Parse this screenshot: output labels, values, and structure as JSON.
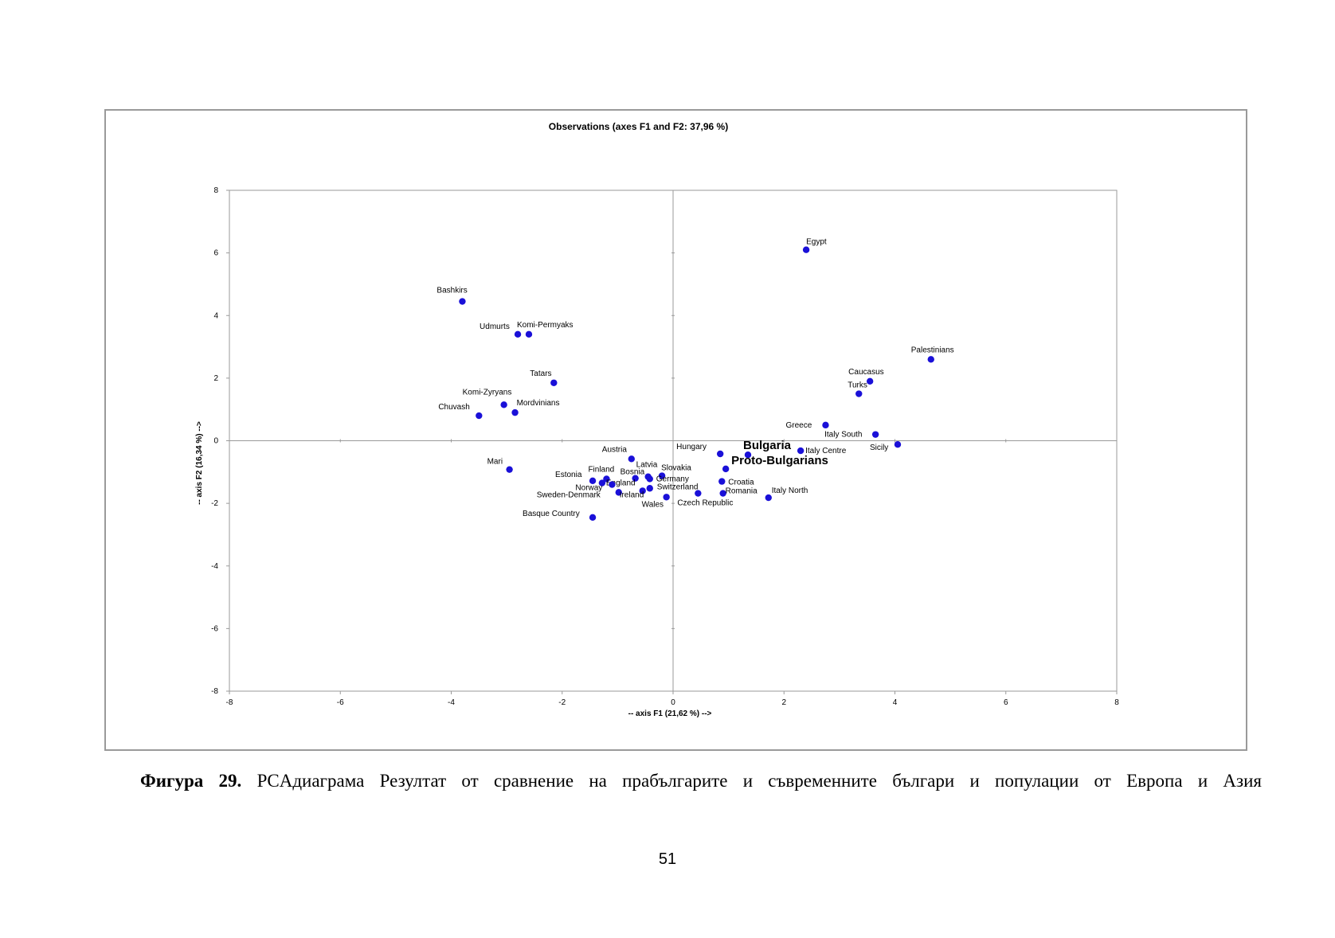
{
  "chart_data": {
    "type": "scatter",
    "title": "Observations (axes F1 and F2: 37,96 %)",
    "xlabel": "-- axis F1 (21,62 %) -->",
    "ylabel": "-- axis F2 (16,34 %) -->",
    "xlim": [
      -8,
      8
    ],
    "ylim": [
      -8,
      8
    ],
    "xticks": [
      "-8",
      "-6",
      "-4",
      "-2",
      "0",
      "2",
      "4",
      "6",
      "8"
    ],
    "yticks": [
      "-8",
      "-6",
      "-4",
      "-2",
      "0",
      "2",
      "4",
      "6",
      "8"
    ],
    "grid": false,
    "point_color": "#1a10d8",
    "points": [
      {
        "label": "Egypt",
        "x": 2.4,
        "y": 6.1
      },
      {
        "label": "Bashkirs",
        "x": -3.8,
        "y": 4.45
      },
      {
        "label": "Udmurts",
        "x": -2.8,
        "y": 3.4
      },
      {
        "label": "Komi-Permyaks",
        "x": -2.6,
        "y": 3.4
      },
      {
        "label": "Palestinians",
        "x": 4.65,
        "y": 2.6
      },
      {
        "label": "Tatars",
        "x": -2.15,
        "y": 1.85
      },
      {
        "label": "Caucasus",
        "x": 3.55,
        "y": 1.9
      },
      {
        "label": "Turks",
        "x": 3.35,
        "y": 1.5
      },
      {
        "label": "Komi-Zyryans",
        "x": -3.05,
        "y": 1.15
      },
      {
        "label": "Mordvinians",
        "x": -2.85,
        "y": 0.9
      },
      {
        "label": "Chuvash",
        "x": -3.5,
        "y": 0.8
      },
      {
        "label": "Greece",
        "x": 2.75,
        "y": 0.5
      },
      {
        "label": "Italy South",
        "x": 3.65,
        "y": 0.2
      },
      {
        "label": "Sicily",
        "x": 4.05,
        "y": -0.12
      },
      {
        "label": "Bulgaria",
        "x": 1.35,
        "y": -0.45
      },
      {
        "label": "Italy Centre",
        "x": 2.3,
        "y": -0.32
      },
      {
        "label": "Hungary",
        "x": 0.85,
        "y": -0.42
      },
      {
        "label": "Proto-Bulgarians",
        "x": 0.95,
        "y": -0.9
      },
      {
        "label": "Austria",
        "x": -0.75,
        "y": -0.58
      },
      {
        "label": "Mari",
        "x": -2.95,
        "y": -0.92
      },
      {
        "label": "Latvia",
        "x": -0.45,
        "y": -1.15
      },
      {
        "label": "Slovakia",
        "x": -0.2,
        "y": -1.12
      },
      {
        "label": "Bosnia",
        "x": -0.68,
        "y": -1.2
      },
      {
        "label": "Germany",
        "x": -0.42,
        "y": -1.22
      },
      {
        "label": "Croatia",
        "x": 0.88,
        "y": -1.3
      },
      {
        "label": "Finland",
        "x": -1.2,
        "y": -1.22
      },
      {
        "label": "Estonia",
        "x": -1.45,
        "y": -1.28
      },
      {
        "label": "England",
        "x": -1.28,
        "y": -1.35
      },
      {
        "label": "Norway",
        "x": -1.1,
        "y": -1.4
      },
      {
        "label": "Switzerland",
        "x": -0.42,
        "y": -1.52
      },
      {
        "label": "Romania",
        "x": 0.9,
        "y": -1.68
      },
      {
        "label": "Czech Republic",
        "x": 0.45,
        "y": -1.68
      },
      {
        "label": "Italy North",
        "x": 1.72,
        "y": -1.82
      },
      {
        "label": "Sweden-Denmark",
        "x": -0.98,
        "y": -1.65
      },
      {
        "label": "Ireland",
        "x": -0.55,
        "y": -1.6
      },
      {
        "label": "Wales",
        "x": -0.12,
        "y": -1.8
      },
      {
        "label": "Basque Country",
        "x": -1.45,
        "y": -2.45
      }
    ],
    "emphasized_labels": [
      "Bulgaria",
      "Proto-Bulgarians"
    ]
  },
  "caption": {
    "prefix": "Фигура 29.",
    "text": " PCAдиаграма Резултат от сравнение на прабългарите и съвременните българи и популации от Европа и Азия"
  },
  "page_number": "51"
}
